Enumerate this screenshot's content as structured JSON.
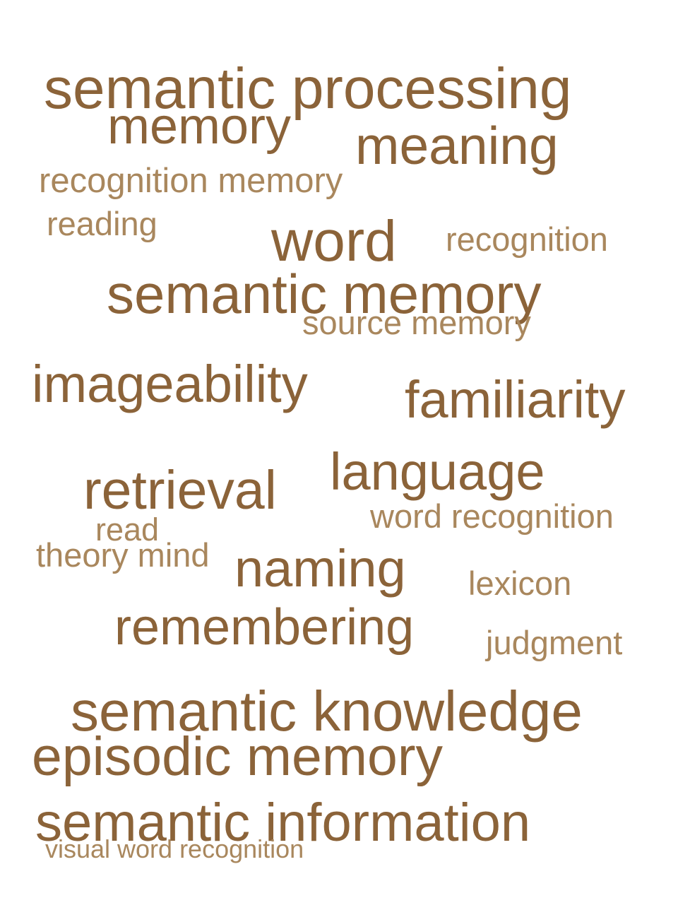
{
  "words": [
    {
      "text": "semantic processing",
      "weight": 1.0,
      "tone": "dark"
    },
    {
      "text": "memory",
      "weight": 0.95,
      "tone": "dark"
    },
    {
      "text": "meaning",
      "weight": 0.95,
      "tone": "dark"
    },
    {
      "text": "recognition memory",
      "weight": 0.7,
      "tone": "light"
    },
    {
      "text": "reading",
      "weight": 0.65,
      "tone": "light"
    },
    {
      "text": "word",
      "weight": 0.98,
      "tone": "dark"
    },
    {
      "text": "recognition",
      "weight": 0.65,
      "tone": "light"
    },
    {
      "text": "semantic memory",
      "weight": 1.0,
      "tone": "dark"
    },
    {
      "text": "source memory",
      "weight": 0.65,
      "tone": "light"
    },
    {
      "text": "imageability",
      "weight": 0.95,
      "tone": "dark"
    },
    {
      "text": "familiarity",
      "weight": 0.95,
      "tone": "dark"
    },
    {
      "text": "language",
      "weight": 0.95,
      "tone": "dark"
    },
    {
      "text": "retrieval",
      "weight": 0.95,
      "tone": "dark"
    },
    {
      "text": "word recognition",
      "weight": 0.65,
      "tone": "light"
    },
    {
      "text": "read",
      "weight": 0.6,
      "tone": "light"
    },
    {
      "text": "theory mind",
      "weight": 0.65,
      "tone": "light"
    },
    {
      "text": "naming",
      "weight": 0.95,
      "tone": "dark"
    },
    {
      "text": "lexicon",
      "weight": 0.65,
      "tone": "light"
    },
    {
      "text": "remembering",
      "weight": 0.95,
      "tone": "dark"
    },
    {
      "text": "judgment",
      "weight": 0.65,
      "tone": "light"
    },
    {
      "text": "semantic knowledge",
      "weight": 1.0,
      "tone": "dark"
    },
    {
      "text": "episodic memory",
      "weight": 1.0,
      "tone": "dark"
    },
    {
      "text": "semantic information",
      "weight": 1.0,
      "tone": "dark"
    },
    {
      "text": "visual word recognition",
      "weight": 0.5,
      "tone": "light"
    }
  ],
  "colors": {
    "dark": "#8b6339",
    "light": "#a9875d",
    "background": "#ffffff"
  }
}
